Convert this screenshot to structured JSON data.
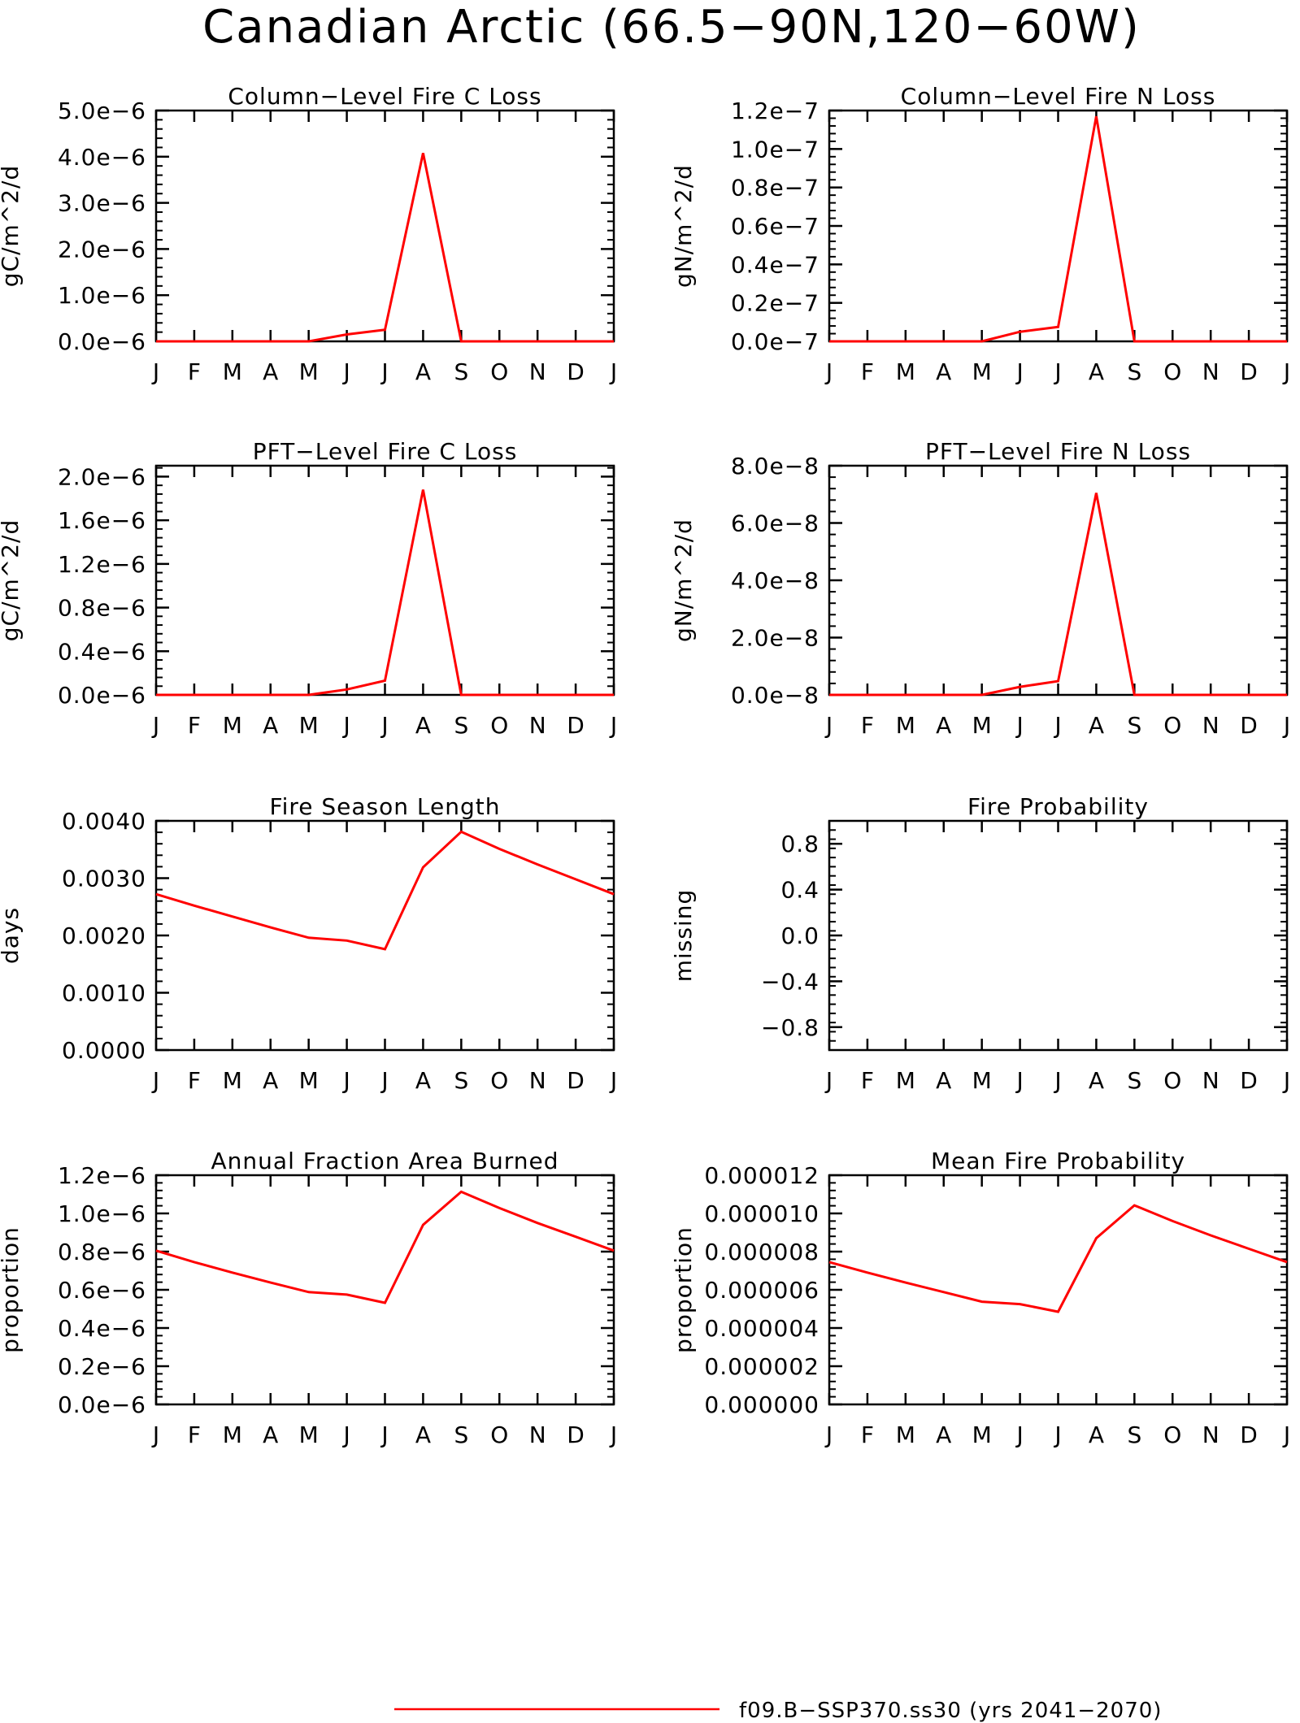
{
  "figure": {
    "title": "Canadian Arctic (66.5−90N,120−60W)",
    "legend": {
      "label": "f09.B−SSP370.ss30 (yrs 2041−2070)",
      "color": "#ff0000",
      "placement": "bottom-center"
    }
  },
  "chart_data": [
    {
      "type": "line",
      "title": "Column−Level Fire C Loss",
      "ylabel": "gC/m^2/d",
      "xlabel": "",
      "x": [
        "J",
        "F",
        "M",
        "A",
        "M",
        "J",
        "J",
        "A",
        "S",
        "O",
        "N",
        "D",
        "J"
      ],
      "ylim": [
        0,
        5e-06
      ],
      "yticks": [
        {
          "v": 0,
          "label": "0.0e−6"
        },
        {
          "v": 1e-06,
          "label": "1.0e−6"
        },
        {
          "v": 2e-06,
          "label": "2.0e−6"
        },
        {
          "v": 3e-06,
          "label": "3.0e−6"
        },
        {
          "v": 4e-06,
          "label": "4.0e−6"
        },
        {
          "v": 5e-06,
          "label": "5.0e−6"
        }
      ],
      "series": [
        {
          "color": "#ff0000",
          "values": [
            0,
            0,
            0,
            0,
            0,
            1.5e-07,
            2.5e-07,
            4.08e-06,
            0,
            0,
            0,
            0,
            0
          ]
        }
      ]
    },
    {
      "type": "line",
      "title": "Column−Level Fire N Loss",
      "ylabel": "gN/m^2/d",
      "xlabel": "",
      "x": [
        "J",
        "F",
        "M",
        "A",
        "M",
        "J",
        "J",
        "A",
        "S",
        "O",
        "N",
        "D",
        "J"
      ],
      "ylim": [
        0,
        1.2e-07
      ],
      "yticks": [
        {
          "v": 0,
          "label": "0.0e−7"
        },
        {
          "v": 2e-08,
          "label": "0.2e−7"
        },
        {
          "v": 4e-08,
          "label": "0.4e−7"
        },
        {
          "v": 6e-08,
          "label": "0.6e−7"
        },
        {
          "v": 8e-08,
          "label": "0.8e−7"
        },
        {
          "v": 1e-07,
          "label": "1.0e−7"
        },
        {
          "v": 1.2e-07,
          "label": "1.2e−7"
        }
      ],
      "series": [
        {
          "color": "#ff0000",
          "values": [
            0,
            0,
            0,
            0,
            0,
            5e-09,
            7.5e-09,
            1.17e-07,
            0,
            0,
            0,
            0,
            0
          ]
        }
      ]
    },
    {
      "type": "line",
      "title": "PFT−Level Fire C Loss",
      "ylabel": "gC/m^2/d",
      "xlabel": "",
      "x": [
        "J",
        "F",
        "M",
        "A",
        "M",
        "J",
        "J",
        "A",
        "S",
        "O",
        "N",
        "D",
        "J"
      ],
      "ylim": [
        0,
        2.1e-06
      ],
      "yticks": [
        {
          "v": 0,
          "label": "0.0e−6"
        },
        {
          "v": 4e-07,
          "label": "0.4e−6"
        },
        {
          "v": 8e-07,
          "label": "0.8e−6"
        },
        {
          "v": 1.2e-06,
          "label": "1.2e−6"
        },
        {
          "v": 1.6e-06,
          "label": "1.6e−6"
        },
        {
          "v": 2e-06,
          "label": "2.0e−6"
        }
      ],
      "series": [
        {
          "color": "#ff0000",
          "values": [
            0,
            0,
            0,
            0,
            0,
            5e-08,
            1.3e-07,
            1.88e-06,
            0,
            0,
            0,
            0,
            0
          ]
        }
      ]
    },
    {
      "type": "line",
      "title": "PFT−Level Fire N Loss",
      "ylabel": "gN/m^2/d",
      "xlabel": "",
      "x": [
        "J",
        "F",
        "M",
        "A",
        "M",
        "J",
        "J",
        "A",
        "S",
        "O",
        "N",
        "D",
        "J"
      ],
      "ylim": [
        0,
        8e-08
      ],
      "yticks": [
        {
          "v": 0,
          "label": "0.0e−8"
        },
        {
          "v": 2e-08,
          "label": "2.0e−8"
        },
        {
          "v": 4e-08,
          "label": "4.0e−8"
        },
        {
          "v": 6e-08,
          "label": "6.0e−8"
        },
        {
          "v": 8e-08,
          "label": "8.0e−8"
        }
      ],
      "series": [
        {
          "color": "#ff0000",
          "values": [
            0,
            0,
            0,
            0,
            0,
            2.8e-09,
            4.8e-09,
            7.05e-08,
            0,
            0,
            0,
            0,
            0
          ]
        }
      ]
    },
    {
      "type": "line",
      "title": "Fire Season Length",
      "ylabel": "days",
      "xlabel": "",
      "x": [
        "J",
        "F",
        "M",
        "A",
        "M",
        "J",
        "J",
        "A",
        "S",
        "O",
        "N",
        "D",
        "J"
      ],
      "ylim": [
        0,
        0.004
      ],
      "yticks": [
        {
          "v": 0,
          "label": "0.0000"
        },
        {
          "v": 0.001,
          "label": "0.0010"
        },
        {
          "v": 0.002,
          "label": "0.0020"
        },
        {
          "v": 0.003,
          "label": "0.0030"
        },
        {
          "v": 0.004,
          "label": "0.0040"
        }
      ],
      "series": [
        {
          "color": "#ff0000",
          "values": [
            0.00272,
            0.00252,
            0.00233,
            0.00214,
            0.00196,
            0.00191,
            0.00176,
            0.00319,
            0.00381,
            0.00351,
            0.00324,
            0.00298,
            0.00272
          ]
        }
      ]
    },
    {
      "type": "line",
      "title": "Fire Probability",
      "ylabel": "missing",
      "xlabel": "",
      "x": [
        "J",
        "F",
        "M",
        "A",
        "M",
        "J",
        "J",
        "A",
        "S",
        "O",
        "N",
        "D",
        "J"
      ],
      "ylim": [
        -1,
        1
      ],
      "yticks": [
        {
          "v": -0.8,
          "label": "−0.8"
        },
        {
          "v": -0.4,
          "label": "−0.4"
        },
        {
          "v": 0,
          "label": "0.0"
        },
        {
          "v": 0.4,
          "label": "0.4"
        },
        {
          "v": 0.8,
          "label": "0.8"
        }
      ],
      "series": []
    },
    {
      "type": "line",
      "title": "Annual Fraction Area Burned",
      "ylabel": "proportion",
      "xlabel": "",
      "x": [
        "J",
        "F",
        "M",
        "A",
        "M",
        "J",
        "J",
        "A",
        "S",
        "O",
        "N",
        "D",
        "J"
      ],
      "ylim": [
        0,
        1.2e-06
      ],
      "yticks": [
        {
          "v": 0,
          "label": "0.0e−6"
        },
        {
          "v": 2e-07,
          "label": "0.2e−6"
        },
        {
          "v": 4e-07,
          "label": "0.4e−6"
        },
        {
          "v": 6e-07,
          "label": "0.6e−6"
        },
        {
          "v": 8e-07,
          "label": "0.8e−6"
        },
        {
          "v": 1e-06,
          "label": "1.0e−6"
        },
        {
          "v": 1.2e-06,
          "label": "1.2e−6"
        }
      ],
      "series": [
        {
          "color": "#ff0000",
          "values": [
            8.05e-07,
            7.45e-07,
            6.9e-07,
            6.38e-07,
            5.88e-07,
            5.75e-07,
            5.32e-07,
            9.4e-07,
            1.113e-06,
            1.028e-06,
            9.5e-07,
            8.78e-07,
            8.05e-07
          ]
        }
      ]
    },
    {
      "type": "line",
      "title": "Mean Fire Probability",
      "ylabel": "proportion",
      "xlabel": "",
      "x": [
        "J",
        "F",
        "M",
        "A",
        "M",
        "J",
        "J",
        "A",
        "S",
        "O",
        "N",
        "D",
        "J"
      ],
      "ylim": [
        0,
        1.2e-05
      ],
      "yticks": [
        {
          "v": 0,
          "label": "0.000000"
        },
        {
          "v": 2e-06,
          "label": "0.000002"
        },
        {
          "v": 4e-06,
          "label": "0.000004"
        },
        {
          "v": 6e-06,
          "label": "0.000006"
        },
        {
          "v": 8e-06,
          "label": "0.000008"
        },
        {
          "v": 1e-05,
          "label": "0.000010"
        },
        {
          "v": 1.2e-05,
          "label": "0.000012"
        }
      ],
      "series": [
        {
          "color": "#ff0000",
          "values": [
            7.45e-06,
            6.9e-06,
            6.38e-06,
            5.88e-06,
            5.38e-06,
            5.25e-06,
            4.85e-06,
            8.7e-06,
            1.042e-05,
            9.6e-06,
            8.85e-06,
            8.15e-06,
            7.45e-06
          ]
        }
      ]
    }
  ]
}
